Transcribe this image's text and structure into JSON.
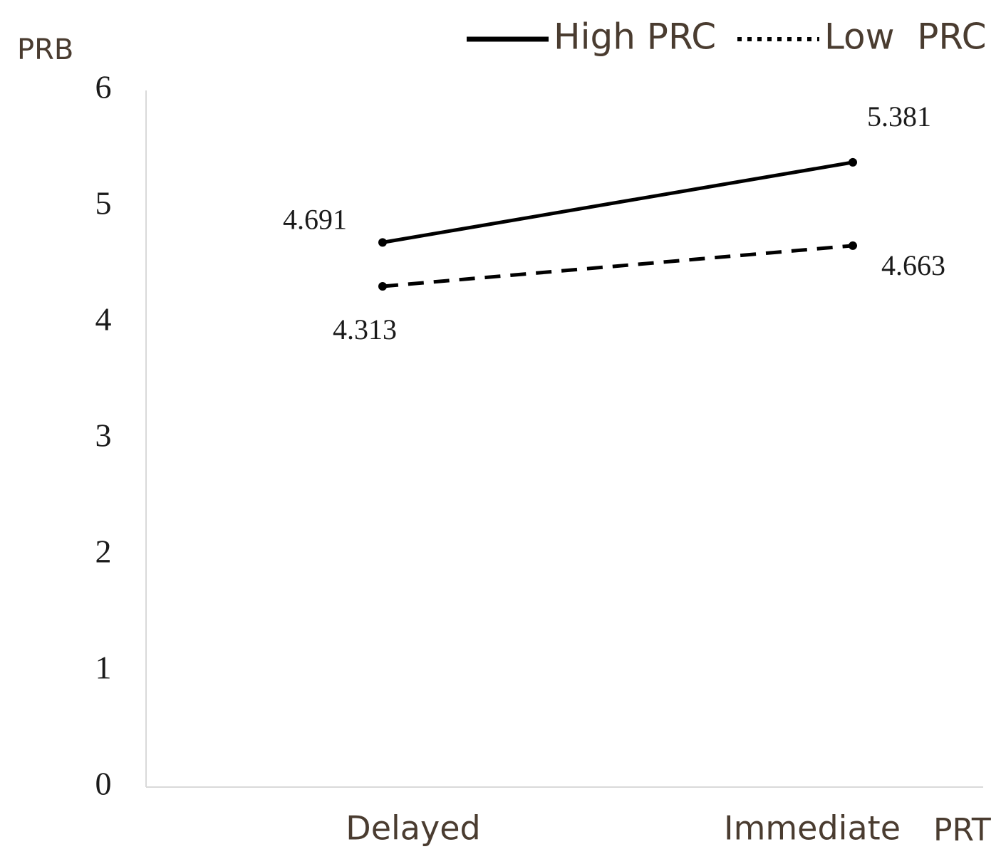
{
  "chart_data": {
    "type": "line",
    "y_label": "PRB",
    "x_label": "PRT",
    "categories": [
      "Delayed",
      "Immediate"
    ],
    "series": [
      {
        "name": "High PRC",
        "color": "#000000",
        "line_style": "solid",
        "values": [
          4.691,
          5.381
        ]
      },
      {
        "name": "Low  PRC",
        "color": "#000000",
        "line_style": "dashed",
        "values": [
          4.313,
          4.663
        ]
      }
    ],
    "ylim": [
      0,
      6
    ],
    "yticks": [
      0,
      1,
      2,
      3,
      4,
      5,
      6
    ],
    "grid": false
  }
}
